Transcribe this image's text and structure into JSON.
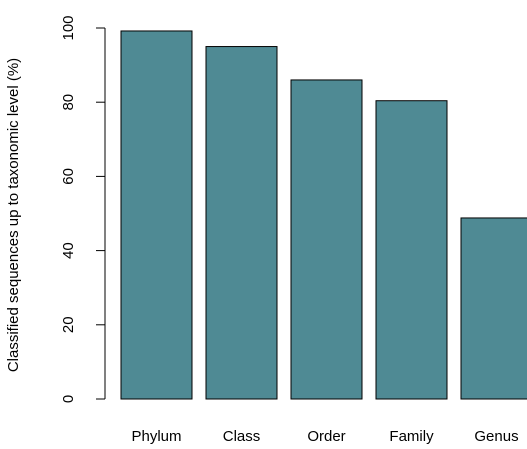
{
  "chart_data": {
    "type": "bar",
    "categories": [
      "Phylum",
      "Class",
      "Order",
      "Family",
      "Genus"
    ],
    "values": [
      99.2,
      95.0,
      86.0,
      80.4,
      48.8
    ],
    "ylabel": "Classified sequences up to taxonomic level (%)",
    "xlabel": "",
    "title": "",
    "ylim": [
      0,
      100
    ],
    "yticks": [
      0,
      20,
      40,
      60,
      80,
      100
    ],
    "grid": false,
    "legend": "none",
    "bar_color": "#4f8a94",
    "bar_edge_color": "#000000"
  }
}
